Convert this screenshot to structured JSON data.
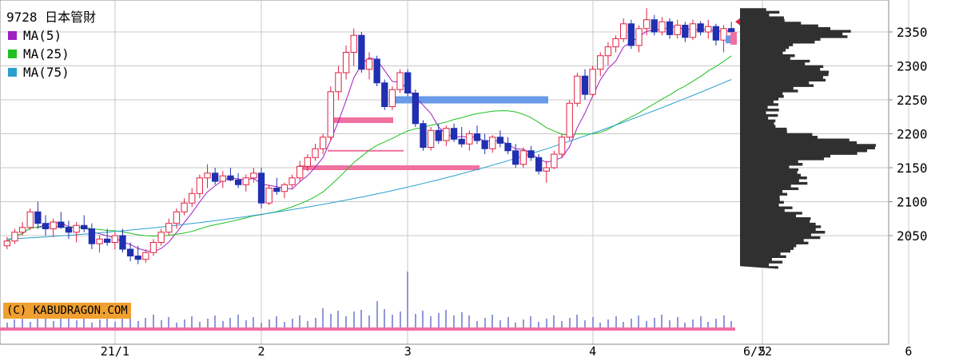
{
  "title": "9728 日本管財",
  "legend": [
    {
      "label": "MA(5)",
      "color": "#a020c0"
    },
    {
      "label": "MA(25)",
      "color": "#20c020"
    },
    {
      "label": "MA(75)",
      "color": "#2aa0d0"
    }
  ],
  "credit": "(C) KABUDRAGON.COM",
  "chart_data": {
    "type": "candlestick",
    "title": "9728 日本管財",
    "y_ticks": [
      "2350",
      "2300",
      "2250",
      "2200",
      "2150",
      "2100",
      "2050"
    ],
    "ylim": [
      1990,
      2390
    ],
    "x_ticks": [
      "21/1",
      "2",
      "3",
      "4",
      "5",
      "6",
      "6/22"
    ],
    "x_tick_index": [
      14,
      33,
      52,
      76,
      98,
      117,
      134
    ],
    "up_color": "#e02040",
    "down_color": "#2030b0",
    "candles": [
      [
        2035,
        2048,
        2030,
        2042
      ],
      [
        2042,
        2060,
        2038,
        2055
      ],
      [
        2055,
        2070,
        2050,
        2062
      ],
      [
        2062,
        2090,
        2058,
        2085
      ],
      [
        2085,
        2100,
        2060,
        2068
      ],
      [
        2068,
        2080,
        2050,
        2060
      ],
      [
        2060,
        2075,
        2048,
        2070
      ],
      [
        2070,
        2085,
        2060,
        2062
      ],
      [
        2062,
        2072,
        2045,
        2055
      ],
      [
        2055,
        2070,
        2040,
        2065
      ],
      [
        2065,
        2080,
        2055,
        2060
      ],
      [
        2060,
        2068,
        2030,
        2038
      ],
      [
        2038,
        2050,
        2025,
        2045
      ],
      [
        2045,
        2060,
        2035,
        2040
      ],
      [
        2040,
        2055,
        2030,
        2050
      ],
      [
        2050,
        2060,
        2025,
        2030
      ],
      [
        2030,
        2040,
        2012,
        2020
      ],
      [
        2020,
        2035,
        2008,
        2015
      ],
      [
        2015,
        2030,
        2010,
        2025
      ],
      [
        2025,
        2045,
        2020,
        2040
      ],
      [
        2040,
        2060,
        2035,
        2055
      ],
      [
        2055,
        2075,
        2050,
        2068
      ],
      [
        2068,
        2090,
        2060,
        2085
      ],
      [
        2085,
        2105,
        2080,
        2098
      ],
      [
        2098,
        2120,
        2092,
        2112
      ],
      [
        2112,
        2140,
        2105,
        2135
      ],
      [
        2135,
        2155,
        2120,
        2142
      ],
      [
        2142,
        2150,
        2125,
        2130
      ],
      [
        2130,
        2145,
        2120,
        2138
      ],
      [
        2138,
        2150,
        2130,
        2132
      ],
      [
        2132,
        2142,
        2120,
        2125
      ],
      [
        2125,
        2140,
        2115,
        2135
      ],
      [
        2135,
        2150,
        2128,
        2142
      ],
      [
        2142,
        2150,
        2090,
        2098
      ],
      [
        2098,
        2125,
        2095,
        2120
      ],
      [
        2120,
        2135,
        2110,
        2115
      ],
      [
        2115,
        2128,
        2105,
        2125
      ],
      [
        2125,
        2140,
        2120,
        2135
      ],
      [
        2135,
        2160,
        2130,
        2152
      ],
      [
        2152,
        2170,
        2145,
        2165
      ],
      [
        2165,
        2185,
        2160,
        2178
      ],
      [
        2178,
        2200,
        2170,
        2195
      ],
      [
        2195,
        2270,
        2190,
        2262
      ],
      [
        2262,
        2300,
        2250,
        2290
      ],
      [
        2290,
        2330,
        2280,
        2320
      ],
      [
        2320,
        2355,
        2300,
        2345
      ],
      [
        2345,
        2350,
        2290,
        2295
      ],
      [
        2295,
        2320,
        2280,
        2310
      ],
      [
        2310,
        2315,
        2270,
        2275
      ],
      [
        2275,
        2280,
        2235,
        2240
      ],
      [
        2240,
        2270,
        2235,
        2265
      ],
      [
        2265,
        2295,
        2260,
        2290
      ],
      [
        2290,
        2295,
        2255,
        2260
      ],
      [
        2260,
        2265,
        2210,
        2215
      ],
      [
        2215,
        2220,
        2175,
        2180
      ],
      [
        2180,
        2210,
        2175,
        2205
      ],
      [
        2205,
        2215,
        2185,
        2190
      ],
      [
        2190,
        2212,
        2182,
        2208
      ],
      [
        2208,
        2215,
        2188,
        2192
      ],
      [
        2192,
        2210,
        2180,
        2185
      ],
      [
        2185,
        2205,
        2175,
        2200
      ],
      [
        2200,
        2212,
        2185,
        2190
      ],
      [
        2190,
        2200,
        2170,
        2178
      ],
      [
        2178,
        2198,
        2172,
        2195
      ],
      [
        2195,
        2205,
        2180,
        2186
      ],
      [
        2186,
        2195,
        2170,
        2175
      ],
      [
        2175,
        2185,
        2150,
        2155
      ],
      [
        2155,
        2180,
        2150,
        2175
      ],
      [
        2175,
        2182,
        2160,
        2165
      ],
      [
        2165,
        2170,
        2140,
        2145
      ],
      [
        2145,
        2160,
        2128,
        2150
      ],
      [
        2150,
        2175,
        2148,
        2170
      ],
      [
        2170,
        2200,
        2165,
        2195
      ],
      [
        2195,
        2250,
        2190,
        2245
      ],
      [
        2245,
        2290,
        2240,
        2285
      ],
      [
        2285,
        2295,
        2250,
        2258
      ],
      [
        2258,
        2300,
        2255,
        2295
      ],
      [
        2295,
        2320,
        2285,
        2315
      ],
      [
        2315,
        2335,
        2300,
        2328
      ],
      [
        2328,
        2345,
        2320,
        2340
      ],
      [
        2340,
        2370,
        2335,
        2362
      ],
      [
        2362,
        2368,
        2325,
        2330
      ],
      [
        2330,
        2360,
        2320,
        2355
      ],
      [
        2355,
        2385,
        2345,
        2368
      ],
      [
        2368,
        2375,
        2345,
        2350
      ],
      [
        2350,
        2372,
        2345,
        2365
      ],
      [
        2365,
        2370,
        2340,
        2346
      ],
      [
        2346,
        2368,
        2340,
        2360
      ],
      [
        2360,
        2365,
        2335,
        2342
      ],
      [
        2342,
        2368,
        2338,
        2362
      ],
      [
        2362,
        2366,
        2345,
        2350
      ],
      [
        2350,
        2368,
        2340,
        2358
      ],
      [
        2358,
        2362,
        2330,
        2338
      ],
      [
        2338,
        2360,
        2320,
        2355
      ],
      [
        2355,
        2365,
        2335,
        2350
      ]
    ],
    "ma_note": "MA(5), MA(25), MA(75)",
    "volume_note": "volume bars at bottom",
    "price_bands": [
      {
        "from": 2250,
        "color": "#6a9ae8"
      },
      {
        "from": 2220,
        "color": "#f070a0"
      },
      {
        "from": 2150,
        "color": "#f070a0"
      }
    ],
    "volume_profile_levels": [
      2350,
      2300,
      2250,
      2200,
      2150,
      2100,
      2050
    ]
  }
}
